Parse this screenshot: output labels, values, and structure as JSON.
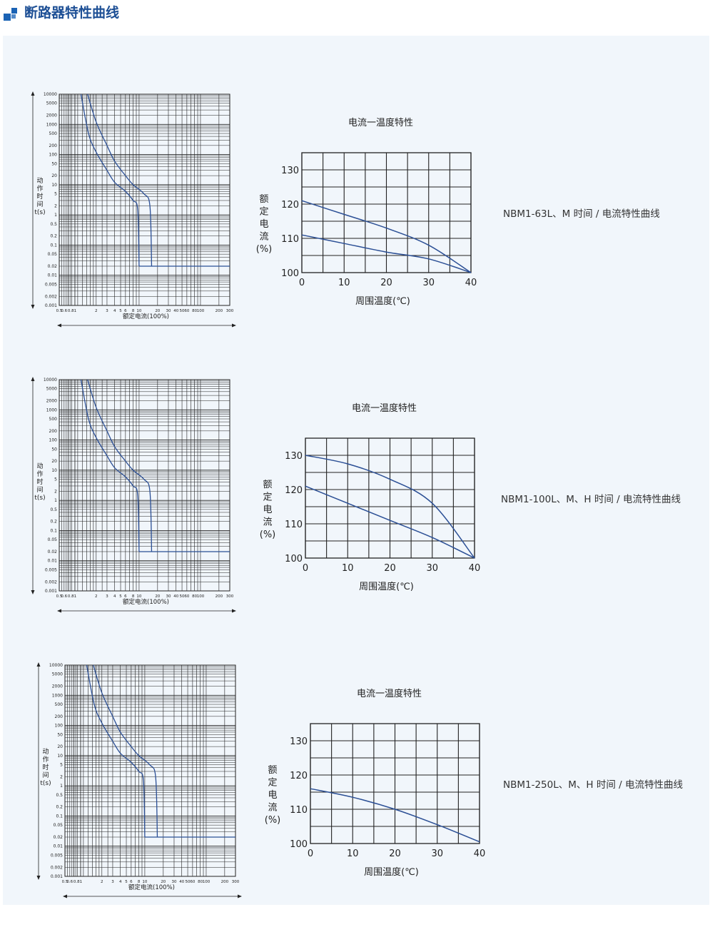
{
  "header": {
    "title": "断路器特性曲线",
    "icon": "blue-squares-icon",
    "accent": "#1b63b5"
  },
  "colors": {
    "curve": "#2b4f95",
    "grid": "#222222",
    "background": "#f1f6fb"
  },
  "chart_data": [
    {
      "type": "line",
      "scale": "log-log",
      "ylabel": "动作时间t(s)",
      "xlabel": "额定电流(100%)",
      "y_ticks": [
        "10000",
        "5000",
        "2000",
        "1000",
        "500",
        "200",
        "100",
        "50",
        "20",
        "10",
        "5",
        "2",
        "1",
        "0.5",
        "0.2",
        "0.1",
        "0.05",
        "0.02",
        "0.01",
        "0.005",
        "0.002",
        "0.001"
      ],
      "x_ticks": [
        "0.5",
        "0.6",
        "0.81",
        "2",
        "3",
        "4",
        "5",
        "6",
        "8",
        "10",
        "20",
        "30",
        "40",
        "50",
        "60",
        "80",
        "100",
        "200",
        "300"
      ],
      "xlim": [
        0.5,
        300
      ],
      "ylim": [
        0.001,
        10000
      ],
      "series": [
        {
          "x": [
            1.13,
            1.5,
            2,
            3,
            4,
            6,
            8,
            9.5,
            10
          ],
          "y": [
            10000,
            500,
            120,
            30,
            12,
            6,
            3,
            1.5,
            0.02
          ]
        },
        {
          "x": [
            1.45,
            2,
            3,
            4,
            6,
            8,
            12,
            15,
            16
          ],
          "y": [
            10000,
            1200,
            200,
            60,
            20,
            10,
            5,
            2,
            0.02
          ]
        }
      ],
      "tail": {
        "x": [
          16,
          300
        ],
        "y": 0.02
      }
    },
    {
      "type": "line",
      "title": "电流一温度特性",
      "ylabel": "额定电流(%)",
      "xlabel": "周围温度(℃)",
      "x_ticks": [
        "0",
        "10",
        "20",
        "30",
        "40"
      ],
      "y_ticks": [
        "100",
        "110",
        "120",
        "130"
      ],
      "xlim": [
        0,
        40
      ],
      "ylim": [
        100,
        135
      ],
      "series": [
        {
          "x": [
            0,
            10,
            20,
            30,
            40
          ],
          "y": [
            121,
            117,
            113,
            108,
            100
          ]
        },
        {
          "x": [
            0,
            10,
            20,
            30,
            40
          ],
          "y": [
            111,
            108.5,
            106,
            104,
            100
          ]
        }
      ]
    },
    {
      "type": "line",
      "scale": "log-log",
      "ylabel": "动作时间t(s)",
      "xlabel": "额定电流(100%)",
      "y_ticks": [
        "10000",
        "5000",
        "2000",
        "1000",
        "500",
        "200",
        "100",
        "50",
        "20",
        "10",
        "5",
        "2",
        "1",
        "0.5",
        "0.2",
        "0.1",
        "0.05",
        "0.02",
        "0.01",
        "0.005",
        "0.002",
        "0.001"
      ],
      "x_ticks": [
        "0.5",
        "0.6",
        "0.81",
        "2",
        "3",
        "4",
        "5",
        "6",
        "8",
        "10",
        "20",
        "30",
        "40",
        "50",
        "60",
        "80",
        "100",
        "200",
        "300"
      ],
      "xlim": [
        0.5,
        300
      ],
      "ylim": [
        0.001,
        10000
      ],
      "series": [
        {
          "x": [
            1.13,
            1.5,
            2,
            3,
            4,
            6,
            8,
            9.5,
            10
          ],
          "y": [
            10000,
            500,
            120,
            30,
            12,
            6,
            3,
            1.5,
            0.02
          ]
        },
        {
          "x": [
            1.45,
            2,
            3,
            4,
            6,
            8,
            12,
            15,
            16
          ],
          "y": [
            10000,
            1200,
            200,
            60,
            20,
            10,
            5,
            2,
            0.02
          ]
        }
      ],
      "tail": {
        "x": [
          16,
          300
        ],
        "y": 0.02
      }
    },
    {
      "type": "line",
      "title": "电流一温度特性",
      "ylabel": "额定电流(%)",
      "xlabel": "周围温度(℃)",
      "x_ticks": [
        "0",
        "10",
        "20",
        "30",
        "40"
      ],
      "y_ticks": [
        "100",
        "110",
        "120",
        "130"
      ],
      "xlim": [
        0,
        40
      ],
      "ylim": [
        100,
        135
      ],
      "series": [
        {
          "x": [
            0,
            10,
            20,
            30,
            40
          ],
          "y": [
            130,
            127.5,
            123,
            116,
            100
          ]
        },
        {
          "x": [
            0,
            10,
            20,
            30,
            40
          ],
          "y": [
            121,
            116,
            111,
            106,
            100
          ]
        }
      ]
    },
    {
      "type": "line",
      "scale": "log-log",
      "ylabel": "动作时间t(s)",
      "xlabel": "额定电流(100%)",
      "y_ticks": [
        "10000",
        "5000",
        "2000",
        "1000",
        "500",
        "200",
        "100",
        "50",
        "20",
        "10",
        "5",
        "2",
        "1",
        "0.5",
        "0.2",
        "0.1",
        "0.05",
        "0.02",
        "0.01",
        "0.005",
        "0.002",
        "0.001"
      ],
      "x_ticks": [
        "0.5",
        "0.6",
        "0.81",
        "2",
        "3",
        "4",
        "5",
        "6",
        "8",
        "10",
        "20",
        "30",
        "40",
        "50",
        "60",
        "80",
        "100",
        "200",
        "300"
      ],
      "xlim": [
        0.5,
        300
      ],
      "ylim": [
        0.001,
        10000
      ],
      "series": [
        {
          "x": [
            1.13,
            1.5,
            2,
            3,
            4,
            6,
            8,
            9.5,
            10
          ],
          "y": [
            10000,
            500,
            120,
            30,
            12,
            6,
            3,
            1.5,
            0.02
          ]
        },
        {
          "x": [
            1.45,
            2,
            3,
            4,
            6,
            8,
            12,
            15,
            16
          ],
          "y": [
            10000,
            1200,
            200,
            60,
            20,
            10,
            5,
            2,
            0.02
          ]
        }
      ],
      "tail": {
        "x": [
          16,
          300
        ],
        "y": 0.02
      }
    },
    {
      "type": "line",
      "title": "电流一温度特性",
      "ylabel": "额定电流(%)",
      "xlabel": "周围温度(℃)",
      "x_ticks": [
        "0",
        "10",
        "20",
        "30",
        "40"
      ],
      "y_ticks": [
        "100",
        "110",
        "120",
        "130"
      ],
      "xlim": [
        0,
        40
      ],
      "ylim": [
        100,
        135
      ],
      "series": [
        {
          "x": [
            0,
            10,
            20,
            30,
            40
          ],
          "y": [
            116,
            113.5,
            110,
            105.5,
            100.5
          ]
        }
      ]
    }
  ],
  "captions": [
    "NBM1-63L、M 时间 / 电流特性曲线",
    "NBM1-100L、M、H  时间 / 电流特性曲线",
    "NBM1-250L、M、H  时间 / 电流特性曲线"
  ]
}
